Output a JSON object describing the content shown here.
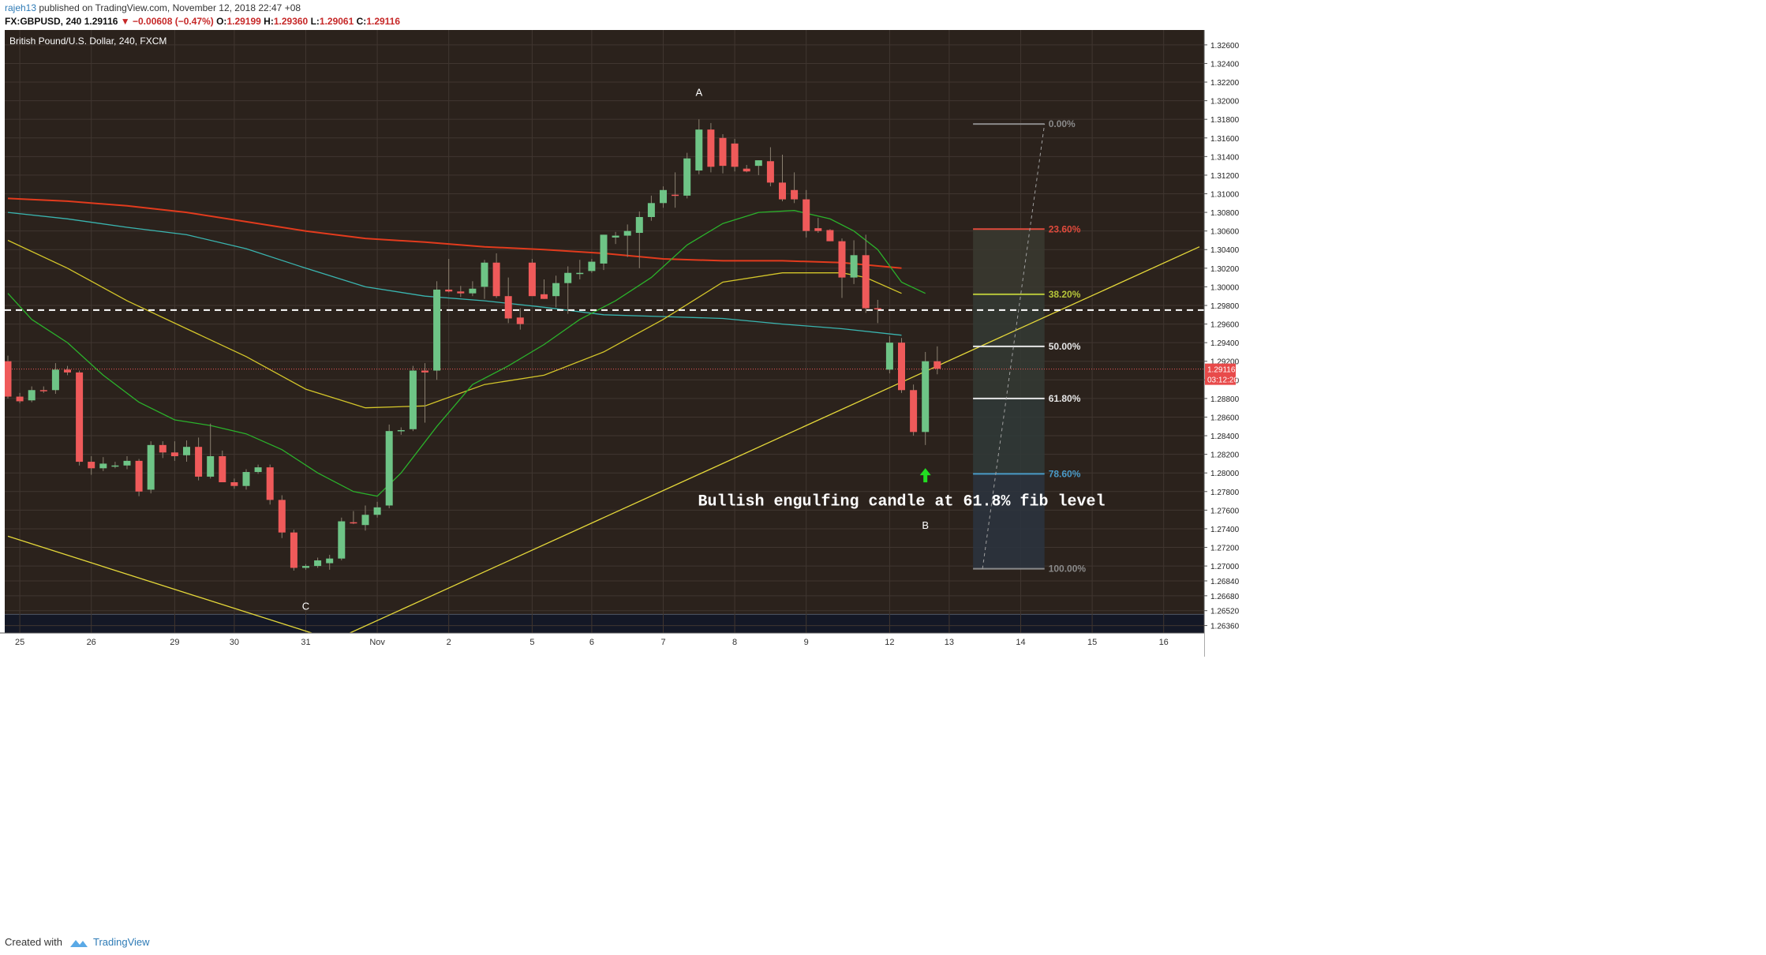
{
  "header": {
    "author": "rajeh13",
    "published": "published on TradingView.com, November 12, 2018 22:47 +08",
    "symbol": "FX:GBPUSD, 240",
    "last": "1.29116",
    "change": "−0.00608 (−0.47%)",
    "ohlc": {
      "o": "1.29199",
      "h": "1.29360",
      "l": "1.29061",
      "c": "1.29116"
    }
  },
  "footer": {
    "created_with": "Created with",
    "brand": "TradingView"
  },
  "colors": {
    "background": "#2b221c",
    "up": "#6ec486",
    "down": "#ef5a5a",
    "ma_red": "#e23b1d",
    "ma_teal": "#3ab5b0",
    "ma_yellow": "#d4c62a",
    "ma_green": "#2bb12b",
    "trendline": "#e5d83a"
  },
  "chart_data": {
    "type": "candlestick",
    "title": "British Pound/U.S. Dollar, 240, FXCM",
    "ylim": [
      1.2628,
      1.3276
    ],
    "y_ticks": [
      "1.32600",
      "1.32400",
      "1.32200",
      "1.32000",
      "1.31800",
      "1.31600",
      "1.31400",
      "1.31200",
      "1.31000",
      "1.30800",
      "1.30600",
      "1.30400",
      "1.30200",
      "1.30000",
      "1.29800",
      "1.29600",
      "1.29400",
      "1.29200",
      "1.29000",
      "1.28800",
      "1.28600",
      "1.28400",
      "1.28200",
      "1.28000",
      "1.27800",
      "1.27600",
      "1.27400",
      "1.27200",
      "1.27000",
      "1.26840",
      "1.26680",
      "1.26520",
      "1.26360"
    ],
    "x_labels": [
      {
        "label": "25",
        "i": 1
      },
      {
        "label": "26",
        "i": 7
      },
      {
        "label": "29",
        "i": 14
      },
      {
        "label": "30",
        "i": 19
      },
      {
        "label": "31",
        "i": 25
      },
      {
        "label": "Nov",
        "i": 31
      },
      {
        "label": "2",
        "i": 37
      },
      {
        "label": "5",
        "i": 44
      },
      {
        "label": "6",
        "i": 49
      },
      {
        "label": "7",
        "i": 55
      },
      {
        "label": "8",
        "i": 61
      },
      {
        "label": "9",
        "i": 67
      },
      {
        "label": "12",
        "i": 74
      },
      {
        "label": "13",
        "i": 79
      },
      {
        "label": "14",
        "i": 85
      },
      {
        "label": "15",
        "i": 91
      },
      {
        "label": "16",
        "i": 97
      }
    ],
    "candles": [
      [
        1.292,
        1.2926,
        1.288,
        1.2882
      ],
      [
        1.2882,
        1.2886,
        1.2875,
        1.2877
      ],
      [
        1.2878,
        1.2893,
        1.2876,
        1.2889
      ],
      [
        1.2889,
        1.2893,
        1.2886,
        1.2888
      ],
      [
        1.2889,
        1.2918,
        1.2885,
        1.2911
      ],
      [
        1.2911,
        1.2915,
        1.2905,
        1.2908
      ],
      [
        1.2908,
        1.291,
        1.2808,
        1.2812
      ],
      [
        1.2812,
        1.2818,
        1.2798,
        1.2805
      ],
      [
        1.2805,
        1.2817,
        1.2802,
        1.281
      ],
      [
        1.2808,
        1.2812,
        1.2805,
        1.2808
      ],
      [
        1.2808,
        1.2818,
        1.2804,
        1.2813
      ],
      [
        1.2813,
        1.2815,
        1.2775,
        1.278
      ],
      [
        1.2782,
        1.2834,
        1.2778,
        1.283
      ],
      [
        1.283,
        1.2834,
        1.2816,
        1.2822
      ],
      [
        1.2822,
        1.2834,
        1.2813,
        1.2818
      ],
      [
        1.2819,
        1.2835,
        1.2812,
        1.2828
      ],
      [
        1.2828,
        1.2838,
        1.2792,
        1.2796
      ],
      [
        1.2796,
        1.2853,
        1.2794,
        1.2818
      ],
      [
        1.2818,
        1.2824,
        1.279,
        1.279
      ],
      [
        1.279,
        1.2794,
        1.2783,
        1.2786
      ],
      [
        1.2786,
        1.2804,
        1.2782,
        1.2801
      ],
      [
        1.2801,
        1.2809,
        1.2799,
        1.2806
      ],
      [
        1.2806,
        1.2809,
        1.2766,
        1.2771
      ],
      [
        1.2771,
        1.2776,
        1.273,
        1.2736
      ],
      [
        1.2736,
        1.2739,
        1.2695,
        1.2698
      ],
      [
        1.2698,
        1.2702,
        1.2696,
        1.27
      ],
      [
        1.27,
        1.2709,
        1.2698,
        1.2706
      ],
      [
        1.2703,
        1.2712,
        1.2696,
        1.2708
      ],
      [
        1.2708,
        1.2752,
        1.2706,
        1.2748
      ],
      [
        1.2747,
        1.2759,
        1.2745,
        1.2746
      ],
      [
        1.2744,
        1.2765,
        1.2738,
        1.2755
      ],
      [
        1.2755,
        1.2769,
        1.2752,
        1.2763
      ],
      [
        1.2765,
        1.2852,
        1.2762,
        1.2845
      ],
      [
        1.2845,
        1.2849,
        1.2841,
        1.2846
      ],
      [
        1.2847,
        1.2915,
        1.2845,
        1.291
      ],
      [
        1.291,
        1.2918,
        1.2854,
        1.2908
      ],
      [
        1.291,
        1.3006,
        1.29,
        1.2997
      ],
      [
        1.2997,
        1.303,
        1.2994,
        1.2995
      ],
      [
        1.2995,
        1.3001,
        1.2989,
        1.2993
      ],
      [
        1.2993,
        1.3006,
        1.299,
        1.2998
      ],
      [
        1.3,
        1.3029,
        1.2987,
        1.3026
      ],
      [
        1.3026,
        1.3036,
        1.2988,
        1.299
      ],
      [
        1.299,
        1.301,
        1.2961,
        1.2966
      ],
      [
        1.2967,
        1.2977,
        1.2954,
        1.296
      ],
      [
        1.3026,
        1.303,
        1.2992,
        1.299
      ],
      [
        1.2992,
        1.3008,
        1.2987,
        1.2987
      ],
      [
        1.299,
        1.3012,
        1.2978,
        1.3004
      ],
      [
        1.3004,
        1.3022,
        1.2971,
        1.3015
      ],
      [
        1.3015,
        1.3029,
        1.3008,
        1.3015
      ],
      [
        1.3017,
        1.303,
        1.3015,
        1.3027
      ],
      [
        1.3025,
        1.3056,
        1.3018,
        1.3056
      ],
      [
        1.3053,
        1.3059,
        1.3046,
        1.3055
      ],
      [
        1.3055,
        1.3067,
        1.3032,
        1.306
      ],
      [
        1.3058,
        1.3081,
        1.302,
        1.3075
      ],
      [
        1.3075,
        1.3098,
        1.3071,
        1.309
      ],
      [
        1.309,
        1.3108,
        1.3085,
        1.3104
      ],
      [
        1.3099,
        1.3123,
        1.3085,
        1.3098
      ],
      [
        1.3098,
        1.3144,
        1.3095,
        1.3138
      ],
      [
        1.3125,
        1.318,
        1.3121,
        1.3169
      ],
      [
        1.3169,
        1.3176,
        1.3123,
        1.3129
      ],
      [
        1.316,
        1.3164,
        1.3122,
        1.313
      ],
      [
        1.3154,
        1.3159,
        1.3124,
        1.3129
      ],
      [
        1.3127,
        1.3131,
        1.3123,
        1.3124
      ],
      [
        1.313,
        1.3136,
        1.312,
        1.3136
      ],
      [
        1.3135,
        1.315,
        1.3108,
        1.3112
      ],
      [
        1.3112,
        1.3142,
        1.3092,
        1.3094
      ],
      [
        1.3104,
        1.3123,
        1.309,
        1.3094
      ],
      [
        1.3094,
        1.3104,
        1.3053,
        1.306
      ],
      [
        1.3063,
        1.3074,
        1.3058,
        1.306
      ],
      [
        1.3061,
        1.3062,
        1.3049,
        1.3049
      ],
      [
        1.3049,
        1.3052,
        1.2988,
        1.301
      ],
      [
        1.301,
        1.305,
        1.3003,
        1.3034
      ],
      [
        1.3034,
        1.3056,
        1.2972,
        1.2977
      ],
      [
        1.2977,
        1.2986,
        1.2961,
        1.2976
      ],
      [
        1.2911,
        1.2947,
        1.2907,
        1.294
      ],
      [
        1.294,
        1.2945,
        1.2886,
        1.2889
      ],
      [
        1.2889,
        1.2895,
        1.284,
        1.2844
      ],
      [
        1.2844,
        1.293,
        1.283,
        1.292
      ],
      [
        1.292,
        1.2936,
        1.2906,
        1.2912
      ]
    ],
    "series": [
      {
        "color": "#e23b1d",
        "points": [
          [
            0,
            1.3095
          ],
          [
            5,
            1.3092
          ],
          [
            10,
            1.3087
          ],
          [
            15,
            1.308
          ],
          [
            20,
            1.307
          ],
          [
            25,
            1.306
          ],
          [
            30,
            1.3052
          ],
          [
            35,
            1.3048
          ],
          [
            40,
            1.3043
          ],
          [
            45,
            1.304
          ],
          [
            50,
            1.3036
          ],
          [
            55,
            1.303
          ],
          [
            60,
            1.3028
          ],
          [
            65,
            1.3028
          ],
          [
            70,
            1.3026
          ],
          [
            75,
            1.302
          ]
        ]
      },
      {
        "color": "#3ab5b0",
        "points": [
          [
            0,
            1.308
          ],
          [
            5,
            1.3073
          ],
          [
            10,
            1.3064
          ],
          [
            15,
            1.3056
          ],
          [
            20,
            1.3041
          ],
          [
            25,
            1.302
          ],
          [
            30,
            1.3
          ],
          [
            35,
            1.299
          ],
          [
            40,
            1.2985
          ],
          [
            45,
            1.2978
          ],
          [
            50,
            1.297
          ],
          [
            55,
            1.2968
          ],
          [
            60,
            1.2966
          ],
          [
            65,
            1.296
          ],
          [
            70,
            1.2955
          ],
          [
            75,
            1.2948
          ]
        ]
      },
      {
        "color": "#d4c62a",
        "points": [
          [
            0,
            1.305
          ],
          [
            5,
            1.302
          ],
          [
            10,
            1.2985
          ],
          [
            15,
            1.2955
          ],
          [
            20,
            1.2925
          ],
          [
            25,
            1.289
          ],
          [
            30,
            1.287
          ],
          [
            35,
            1.2872
          ],
          [
            40,
            1.2895
          ],
          [
            45,
            1.2905
          ],
          [
            50,
            1.293
          ],
          [
            55,
            1.2965
          ],
          [
            60,
            1.3005
          ],
          [
            65,
            1.3015
          ],
          [
            70,
            1.3015
          ],
          [
            72,
            1.301
          ],
          [
            75,
            1.2993
          ]
        ]
      },
      {
        "color": "#2bb12b",
        "points": [
          [
            0,
            1.2993
          ],
          [
            2,
            1.2965
          ],
          [
            5,
            1.294
          ],
          [
            8,
            1.2905
          ],
          [
            11,
            1.2876
          ],
          [
            14,
            1.2857
          ],
          [
            17,
            1.2851
          ],
          [
            20,
            1.2842
          ],
          [
            23,
            1.2825
          ],
          [
            26,
            1.28
          ],
          [
            29,
            1.278
          ],
          [
            31,
            1.2775
          ],
          [
            33,
            1.28
          ],
          [
            36,
            1.285
          ],
          [
            39,
            1.2895
          ],
          [
            42,
            1.2915
          ],
          [
            45,
            1.2938
          ],
          [
            48,
            1.2965
          ],
          [
            51,
            1.2985
          ],
          [
            54,
            1.301
          ],
          [
            57,
            1.3045
          ],
          [
            60,
            1.3068
          ],
          [
            63,
            1.308
          ],
          [
            66,
            1.3082
          ],
          [
            69,
            1.3073
          ],
          [
            71,
            1.306
          ],
          [
            73,
            1.304
          ],
          [
            75,
            1.3005
          ],
          [
            77,
            1.2993
          ]
        ]
      }
    ],
    "trendlines": [
      {
        "color": "#e5d83a",
        "from": [
          0,
          1.2732
        ],
        "to": [
          25.5,
          1.2628
        ]
      },
      {
        "color": "#e5d83a",
        "from": [
          28.7,
          1.2628
        ],
        "to": [
          100,
          1.3043
        ]
      }
    ],
    "horizontal_dashed": 1.2975,
    "current_price_label": "1.29116",
    "countdown_label": "03:12:20",
    "fibonacci": {
      "x_from": 81,
      "x_to": 87,
      "high": 1.3175,
      "low": 1.2697,
      "levels": [
        {
          "label": "0.00%",
          "value": 1.3175,
          "color": "#8a8a8a"
        },
        {
          "label": "23.60%",
          "value": 1.3062,
          "color": "#e04a3c"
        },
        {
          "label": "38.20%",
          "value": 1.2992,
          "color": "#b6c53a"
        },
        {
          "label": "50.00%",
          "value": 1.2936,
          "color": "#e6e6e6"
        },
        {
          "label": "61.80%",
          "value": 1.288,
          "color": "#e6e6e6"
        },
        {
          "label": "78.60%",
          "value": 1.2799,
          "color": "#4a9ac7"
        },
        {
          "label": "100.00%",
          "value": 1.2697,
          "color": "#8a8a8a"
        }
      ]
    },
    "annotations": [
      {
        "text": "A",
        "i": 58,
        "value": 1.3205
      },
      {
        "text": "B",
        "i": 77,
        "value": 1.274
      },
      {
        "text": "C",
        "i": 25,
        "value": 1.2653
      },
      {
        "text": "Bullish engulfing candle at 61.8% fib level",
        "i": 75,
        "value": 1.2765
      }
    ],
    "arrow": {
      "i": 77,
      "value": 1.2795,
      "color": "#22dd22"
    }
  }
}
